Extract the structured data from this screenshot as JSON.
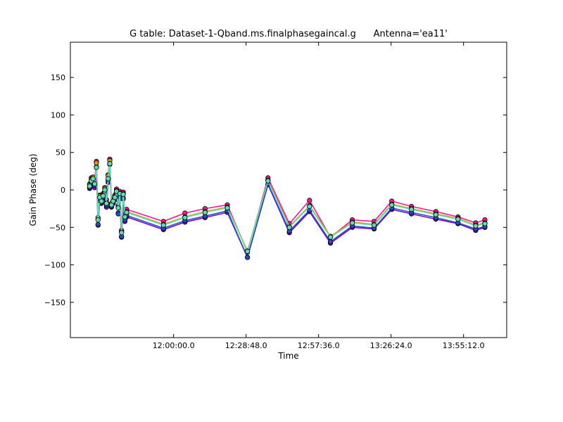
{
  "chart_data": {
    "type": "line",
    "title": "G table: Dataset-1-Qband.ms.finalphasegaincal.g      Antenna='ea11'",
    "xlabel": "Time",
    "ylabel": "Gain Phase (deg)",
    "xlim": [
      40740,
      51140
    ],
    "ylim": [
      -197,
      197
    ],
    "x_ticks": [
      {
        "value": 43200,
        "label": "12:00:00.0"
      },
      {
        "value": 44928,
        "label": "12:28:48.0"
      },
      {
        "value": 46656,
        "label": "12:57:36.0"
      },
      {
        "value": 48384,
        "label": "13:26:24.0"
      },
      {
        "value": 50112,
        "label": "13:55:12.0"
      }
    ],
    "y_ticks": [
      {
        "value": 150,
        "label": "150"
      },
      {
        "value": 100,
        "label": "100"
      },
      {
        "value": 50,
        "label": "50"
      },
      {
        "value": 0,
        "label": "0"
      },
      {
        "value": -50,
        "label": "−50"
      },
      {
        "value": -100,
        "label": "−100"
      },
      {
        "value": -150,
        "label": "−150"
      }
    ],
    "grid": false,
    "x": [
      41200,
      41240,
      41280,
      41320,
      41360,
      41400,
      41440,
      41480,
      41520,
      41560,
      41600,
      41640,
      41680,
      41720,
      41760,
      41800,
      41840,
      41880,
      41920,
      41960,
      42000,
      42040,
      42080,
      42960,
      43470,
      43950,
      44480,
      44960,
      45450,
      45960,
      46440,
      46940,
      47460,
      47980,
      48400,
      48870,
      49450,
      49980,
      50400,
      50620
    ],
    "base_values": [
      5,
      12,
      15,
      8,
      30,
      -40,
      -10,
      -15,
      -8,
      0,
      -18,
      15,
      35,
      -20,
      -15,
      -10,
      -2,
      -24,
      -5,
      -57,
      -6,
      -36,
      -30,
      -47,
      -37,
      -30,
      -24,
      -82,
      12,
      -50,
      -22,
      -63,
      -44,
      -47,
      -20,
      -26,
      -33,
      -39,
      -48,
      -45
    ],
    "series": [
      {
        "name": "",
        "offset": 3,
        "jitter": [
          0,
          1,
          -1,
          2,
          5,
          -2,
          0,
          1,
          0,
          0,
          2,
          2,
          3,
          -1,
          0,
          0,
          0,
          0,
          0,
          0,
          0,
          0,
          1,
          2,
          3,
          2,
          1,
          -4,
          1,
          2,
          5,
          -3,
          1,
          2,
          2,
          1,
          1,
          0,
          1,
          2
        ]
      },
      {
        "name": "",
        "offset": -3,
        "jitter": [
          0,
          -1,
          0,
          -2,
          4,
          -4,
          -2,
          0,
          0,
          0,
          -2,
          -2,
          2,
          0,
          0,
          0,
          0,
          -4,
          -4,
          -3,
          -3,
          -3,
          -3,
          -3,
          -3,
          -4,
          -3,
          -5,
          -2,
          -4,
          -4,
          -5,
          -3,
          -2,
          -3,
          -3,
          -3,
          -3,
          -3,
          -2
        ]
      },
      {
        "name": "",
        "offset": 1,
        "jitter": [
          1,
          1,
          1,
          0,
          5,
          2,
          1,
          0,
          0,
          1,
          0,
          3,
          3,
          1,
          0,
          0,
          0,
          0,
          0,
          0,
          0,
          0,
          0,
          0,
          0,
          0,
          0,
          0,
          0,
          0,
          0,
          0,
          0,
          0,
          0,
          0,
          0,
          0,
          0,
          0
        ]
      },
      {
        "name": "",
        "offset": -2,
        "jitter": [
          0,
          0,
          0,
          0,
          2,
          -4,
          0,
          0,
          0,
          0,
          0,
          0,
          2,
          0,
          0,
          0,
          0,
          -6,
          -2,
          -3,
          -3,
          -2,
          -2,
          -2,
          -2,
          -3,
          -2,
          -6,
          -2,
          -3,
          -3,
          -4,
          -2,
          -2,
          -2,
          -2,
          -2,
          -3,
          -2,
          -2
        ]
      },
      {
        "name": "",
        "offset": 0,
        "jitter": [
          0,
          0,
          0,
          0,
          0,
          0,
          0,
          0,
          0,
          0,
          0,
          0,
          0,
          0,
          0,
          0,
          0,
          0,
          0,
          0,
          0,
          0,
          0,
          0,
          0,
          0,
          0,
          0,
          0,
          0,
          0,
          0,
          0,
          0,
          0,
          0,
          0,
          0,
          0,
          0
        ]
      }
    ],
    "colors": {
      "series": [
        "#ff1493",
        "#7b00d4",
        "#c8a000",
        "#2050c0",
        "#66d9b8"
      ],
      "marker_edge": "#000000",
      "axis": "#000000",
      "background": "#ffffff"
    }
  }
}
